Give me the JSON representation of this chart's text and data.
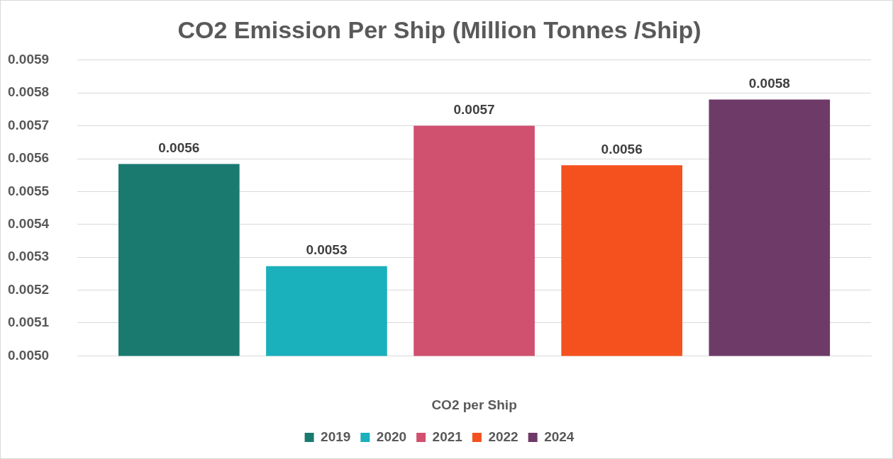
{
  "chart_data": {
    "type": "bar",
    "title": "CO2 Emission Per Ship (Million Tonnes /Ship)",
    "categories": [
      null
    ],
    "xlabel": "CO2 per Ship",
    "series": [
      {
        "name": "2019",
        "color": "#1a7a70",
        "values": [
          0.005584
        ],
        "value_labels": [
          "0.0056"
        ]
      },
      {
        "name": "2020",
        "color": "#1ab0bc",
        "values": [
          0.005273
        ],
        "value_labels": [
          "0.0053"
        ]
      },
      {
        "name": "2021",
        "color": "#d0506f",
        "values": [
          0.0057
        ],
        "value_labels": [
          "0.0057"
        ]
      },
      {
        "name": "2022",
        "color": "#f4511e",
        "values": [
          0.00558
        ],
        "value_labels": [
          "0.0056"
        ]
      },
      {
        "name": "2024",
        "color": "#6e3a68",
        "values": [
          0.00578
        ],
        "value_labels": [
          "0.0058"
        ]
      }
    ],
    "ylim": [
      0.005,
      0.0059
    ],
    "yticks": [
      {
        "value": 0.005,
        "label": "0.0050"
      },
      {
        "value": 0.0051,
        "label": "0.0051"
      },
      {
        "value": 0.0052,
        "label": "0.0052"
      },
      {
        "value": 0.0053,
        "label": "0.0053"
      },
      {
        "value": 0.0054,
        "label": "0.0054"
      },
      {
        "value": 0.0055,
        "label": "0.0055"
      },
      {
        "value": 0.0056,
        "label": "0.0056"
      },
      {
        "value": 0.0057,
        "label": "0.0057"
      },
      {
        "value": 0.0058,
        "label": "0.0058"
      },
      {
        "value": 0.0059,
        "label": "0.0059"
      }
    ],
    "grid": "y",
    "legend": "bottom"
  }
}
